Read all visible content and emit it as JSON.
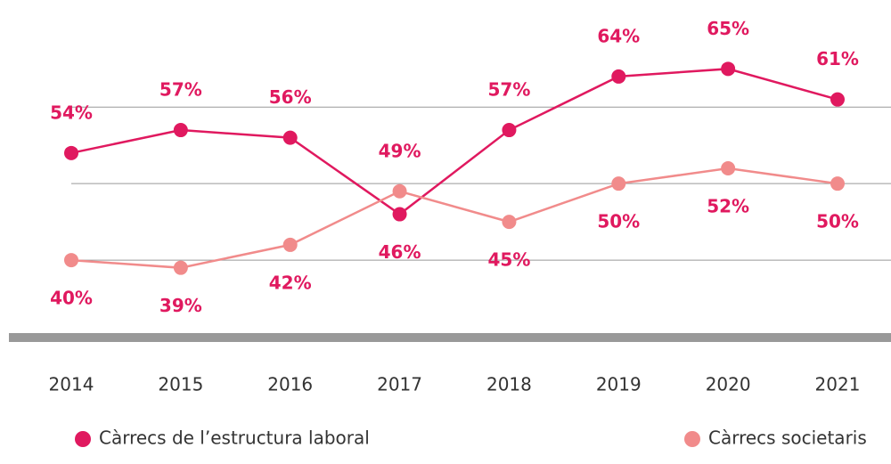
{
  "chart_data": {
    "type": "line",
    "x": [
      "2014",
      "2015",
      "2016",
      "2017",
      "2018",
      "2019",
      "2020",
      "2021"
    ],
    "series": [
      {
        "name": "Càrrecs de l’estructura laboral",
        "color": "#e0195f",
        "values": [
          54,
          57,
          56,
          46,
          57,
          64,
          65,
          61
        ],
        "value_labels": [
          "54%",
          "57%",
          "56%",
          "46%",
          "57%",
          "64%",
          "65%",
          "61%"
        ]
      },
      {
        "name": "Càrrecs societaris",
        "color": "#f18b8b",
        "values": [
          40,
          39,
          42,
          49,
          45,
          50,
          52,
          50
        ],
        "value_labels": [
          "40%",
          "39%",
          "42%",
          "49%",
          "45%",
          "50%",
          "52%",
          "50%"
        ]
      }
    ],
    "ylim": [
      30,
      74
    ],
    "yticks": [
      40,
      50,
      60
    ],
    "grid": true
  }
}
